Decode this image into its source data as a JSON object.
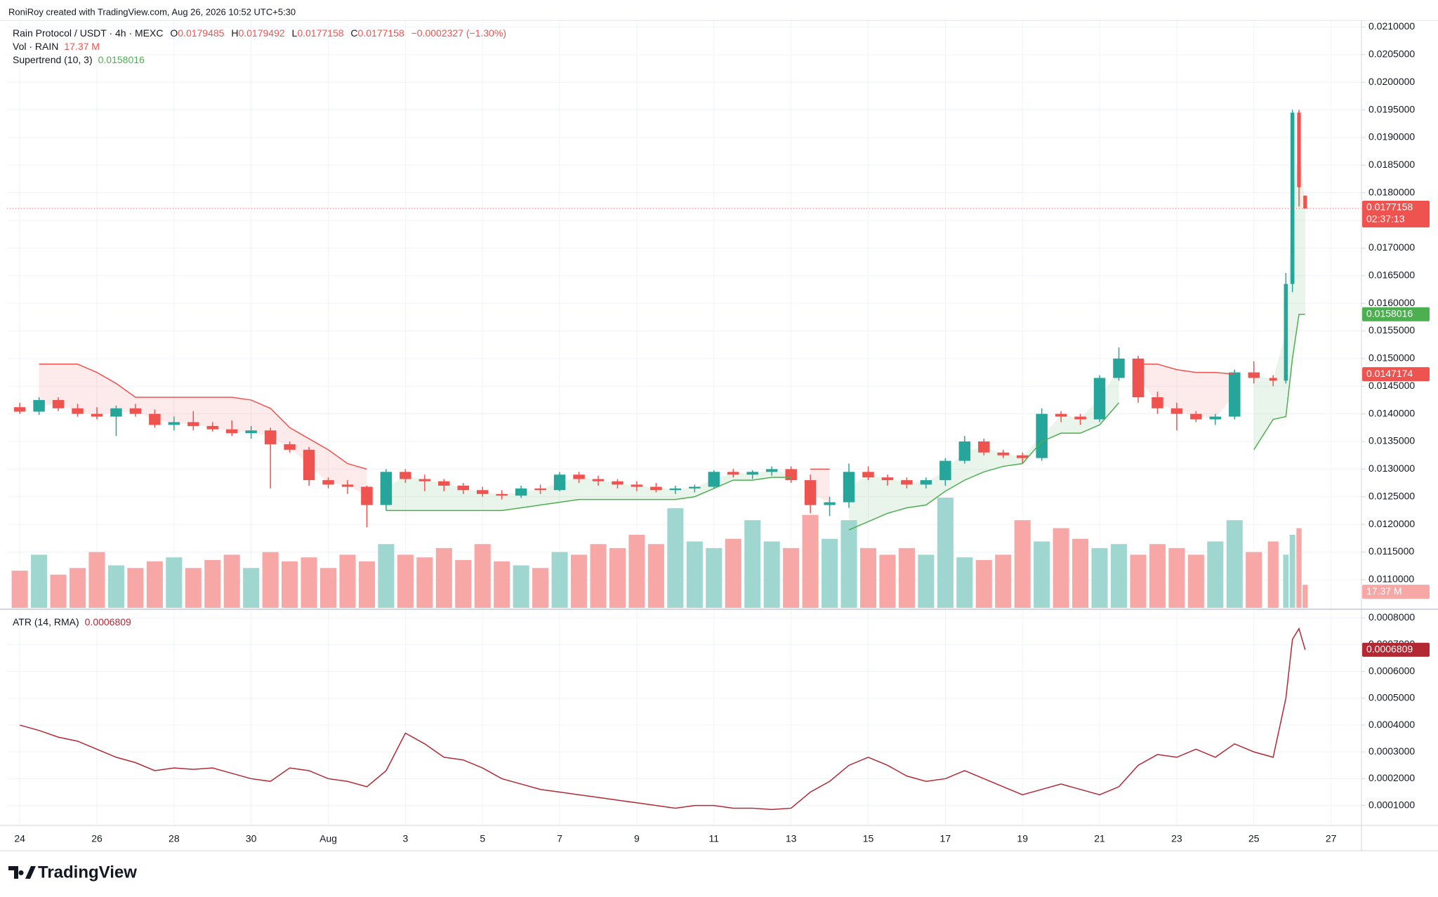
{
  "credit": "RoniRoy created with TradingView.com, Aug 26, 2026 10:52 UTC+5:30",
  "logo": "TradingView",
  "chart_data": [
    {
      "type": "candlestick",
      "title": "Rain Protocol / USDT · 4h · MEXC",
      "ohlc_letters": [
        "O",
        "H",
        "L",
        "C"
      ],
      "change": "−0.0002327 (−1.30%)",
      "up_color": "#26a69a",
      "down_color": "#ef5350",
      "countdown": "02:37:13",
      "x": [
        24,
        24.5,
        25,
        25.5,
        26,
        26.5,
        27,
        27.5,
        28,
        28.5,
        29,
        29.5,
        30,
        30.5,
        31,
        31.5,
        32,
        32.5,
        33,
        33.5,
        34,
        34.5,
        35,
        35.5,
        36,
        36.5,
        37,
        37.5,
        38,
        38.5,
        39,
        39.5,
        40,
        40.5,
        41,
        41.5,
        42,
        42.5,
        43,
        43.5,
        44,
        44.5,
        45,
        45.5,
        46,
        46.5,
        47,
        47.5,
        48,
        48.5,
        49,
        49.5,
        50,
        50.5,
        51,
        51.5,
        52,
        52.5,
        53,
        53.5,
        54,
        54.5,
        55,
        55.5,
        56,
        56.5,
        56.83,
        57,
        57.17,
        57.33
      ],
      "open": [
        0.01412,
        0.01404,
        0.01425,
        0.0141,
        0.014,
        0.01395,
        0.0141,
        0.014,
        0.0138,
        0.01385,
        0.01378,
        0.01372,
        0.01365,
        0.0137,
        0.01345,
        0.01335,
        0.0128,
        0.01272,
        0.01268,
        0.01235,
        0.01295,
        0.01282,
        0.01278,
        0.0127,
        0.01262,
        0.01255,
        0.01252,
        0.01265,
        0.01262,
        0.0129,
        0.01282,
        0.01278,
        0.01272,
        0.01268,
        0.01262,
        0.01265,
        0.01268,
        0.01295,
        0.0129,
        0.01295,
        0.013,
        0.0128,
        0.01235,
        0.0124,
        0.01295,
        0.01285,
        0.0128,
        0.01272,
        0.0128,
        0.01315,
        0.0135,
        0.0133,
        0.01325,
        0.0132,
        0.014,
        0.01395,
        0.0139,
        0.01465,
        0.015,
        0.0143,
        0.0141,
        0.014,
        0.0139,
        0.01395,
        0.01475,
        0.01465,
        0.0146,
        0.01635,
        0.01945,
        0.0179485
      ],
      "high": [
        0.0142,
        0.0143,
        0.0143,
        0.01418,
        0.01412,
        0.01415,
        0.01418,
        0.01408,
        0.01395,
        0.01405,
        0.01385,
        0.01388,
        0.01378,
        0.01375,
        0.0135,
        0.0134,
        0.01285,
        0.0128,
        0.0127,
        0.013,
        0.013,
        0.0129,
        0.01282,
        0.01275,
        0.01268,
        0.01262,
        0.0127,
        0.01272,
        0.01295,
        0.01295,
        0.01288,
        0.01282,
        0.01278,
        0.01275,
        0.0127,
        0.01272,
        0.01298,
        0.013,
        0.01298,
        0.01305,
        0.01305,
        0.0129,
        0.0125,
        0.0131,
        0.01305,
        0.0129,
        0.01285,
        0.01285,
        0.0132,
        0.0136,
        0.01355,
        0.01335,
        0.0133,
        0.0141,
        0.01405,
        0.014,
        0.0147,
        0.0152,
        0.01505,
        0.0144,
        0.0142,
        0.01405,
        0.014,
        0.0148,
        0.01495,
        0.0147,
        0.01655,
        0.0195,
        0.0195,
        0.0179492
      ],
      "low": [
        0.014,
        0.01398,
        0.01405,
        0.01395,
        0.0139,
        0.0136,
        0.01395,
        0.01375,
        0.0137,
        0.0137,
        0.01368,
        0.0136,
        0.01355,
        0.01265,
        0.0133,
        0.0127,
        0.01265,
        0.01255,
        0.01195,
        0.01225,
        0.01275,
        0.0126,
        0.0126,
        0.01255,
        0.0125,
        0.01245,
        0.01248,
        0.01255,
        0.0126,
        0.01275,
        0.0127,
        0.01265,
        0.0126,
        0.01258,
        0.01255,
        0.01258,
        0.01265,
        0.01285,
        0.01282,
        0.01288,
        0.01275,
        0.0122,
        0.01215,
        0.0123,
        0.0128,
        0.0127,
        0.01265,
        0.01265,
        0.0127,
        0.0131,
        0.01325,
        0.0132,
        0.0131,
        0.01315,
        0.01385,
        0.0138,
        0.01385,
        0.0146,
        0.0142,
        0.014,
        0.0137,
        0.01385,
        0.0138,
        0.0139,
        0.01455,
        0.0145,
        0.01455,
        0.0162,
        0.01775,
        0.0177158
      ],
      "close": [
        0.01404,
        0.01425,
        0.0141,
        0.014,
        0.01395,
        0.0141,
        0.014,
        0.0138,
        0.01385,
        0.01378,
        0.01372,
        0.01365,
        0.0137,
        0.01345,
        0.01335,
        0.0128,
        0.01272,
        0.01268,
        0.01235,
        0.01295,
        0.01282,
        0.01278,
        0.0127,
        0.01262,
        0.01255,
        0.01252,
        0.01265,
        0.01262,
        0.0129,
        0.01282,
        0.01278,
        0.01272,
        0.01268,
        0.01262,
        0.01265,
        0.01268,
        0.01295,
        0.0129,
        0.01295,
        0.013,
        0.0128,
        0.01235,
        0.0124,
        0.01295,
        0.01285,
        0.0128,
        0.01272,
        0.0128,
        0.01315,
        0.0135,
        0.0133,
        0.01325,
        0.0132,
        0.014,
        0.01395,
        0.0139,
        0.01465,
        0.015,
        0.0143,
        0.0141,
        0.014,
        0.0139,
        0.01395,
        0.01475,
        0.01465,
        0.0146,
        0.01635,
        0.01945,
        0.0181,
        0.0177158
      ],
      "xlim": [
        23.67,
        58.79
      ],
      "xticks": [
        24,
        26,
        28,
        30,
        {
          "value": 32,
          "label": "Aug"
        },
        {
          "value": 34,
          "label": "3"
        },
        {
          "value": 36,
          "label": "5"
        },
        {
          "value": 38,
          "label": "7"
        },
        {
          "value": 40,
          "label": "9"
        },
        {
          "value": 42,
          "label": "11"
        },
        {
          "value": 44,
          "label": "13"
        },
        {
          "value": 46,
          "label": "15"
        },
        {
          "value": 48,
          "label": "17"
        },
        {
          "value": 50,
          "label": "19"
        },
        {
          "value": 52,
          "label": "21"
        },
        {
          "value": 54,
          "label": "23"
        },
        {
          "value": 56,
          "label": "25"
        },
        {
          "value": 58,
          "label": "27"
        }
      ],
      "ylim": [
        0.01049,
        0.02112
      ],
      "yticks": [
        {
          "value": 0.011,
          "label": "0.0110000"
        },
        {
          "value": 0.0115,
          "label": "0.0115000"
        },
        {
          "value": 0.012,
          "label": "0.0120000"
        },
        {
          "value": 0.0125,
          "label": "0.0125000"
        },
        {
          "value": 0.013,
          "label": "0.0130000"
        },
        {
          "value": 0.0135,
          "label": "0.0135000"
        },
        {
          "value": 0.014,
          "label": "0.0140000"
        },
        {
          "value": 0.0145,
          "label": "0.0145000"
        },
        {
          "value": 0.015,
          "label": "0.0150000"
        },
        {
          "value": 0.0155,
          "label": "0.0155000"
        },
        {
          "value": 0.016,
          "label": "0.0160000"
        },
        {
          "value": 0.0165,
          "label": "0.0165000"
        },
        {
          "value": 0.017,
          "label": "0.0170000"
        },
        {
          "value": 0.0175,
          "label": "0.0175000"
        },
        {
          "value": 0.018,
          "label": "0.0180000"
        },
        {
          "value": 0.0185,
          "label": "0.0185000"
        },
        {
          "value": 0.019,
          "label": "0.0190000"
        },
        {
          "value": 0.0195,
          "label": "0.0195000"
        },
        {
          "value": 0.02,
          "label": "0.0200000"
        },
        {
          "value": 0.0205,
          "label": "0.0205000"
        },
        {
          "value": 0.021,
          "label": "0.0210000"
        }
      ],
      "grid": true,
      "volume": {
        "name": "Vol · RAIN",
        "last_label": "17.37 M",
        "up_color": "#9fd6d0",
        "down_color": "#f7a7a5",
        "values": [
          28,
          40,
          25,
          30,
          42,
          32,
          30,
          35,
          38,
          30,
          36,
          40,
          30,
          42,
          35,
          38,
          30,
          40,
          35,
          48,
          40,
          38,
          45,
          36,
          48,
          35,
          32,
          30,
          42,
          40,
          48,
          45,
          55,
          48,
          75,
          50,
          45,
          52,
          66,
          50,
          45,
          70,
          52,
          66,
          45,
          40,
          45,
          40,
          83,
          38,
          36,
          40,
          66,
          50,
          60,
          52,
          45,
          48,
          40,
          48,
          45,
          40,
          50,
          66,
          42,
          50,
          40,
          55,
          60,
          17.37
        ]
      },
      "supertrend": {
        "name": "Supertrend (10, 3)",
        "series": [
          {
            "color": "#4caf50",
            "values": [
              null,
              null,
              null,
              null,
              null,
              null,
              null,
              null,
              null,
              null,
              null,
              null,
              null,
              null,
              null,
              null,
              null,
              null,
              null,
              0.01225,
              0.01225,
              0.01225,
              0.01225,
              0.01225,
              0.01225,
              0.01225,
              0.0123,
              0.01235,
              0.0124,
              0.01245,
              0.01245,
              0.01245,
              0.01245,
              0.01245,
              0.01245,
              0.0125,
              0.01265,
              0.0128,
              0.0128,
              0.01285,
              0.01285,
              null,
              null,
              0.0119,
              0.01205,
              0.0122,
              0.0123,
              0.01235,
              0.0126,
              0.0128,
              0.01295,
              0.01305,
              0.0131,
              0.0135,
              0.01365,
              0.01365,
              0.0138,
              0.0142,
              null,
              null,
              null,
              null,
              null,
              null,
              0.01335,
              0.0139,
              0.01395,
              0.015,
              0.0158,
              0.0158016
            ]
          },
          {
            "color": "#ef5350",
            "values": [
              null,
              0.0149,
              0.0149,
              0.0149,
              0.01475,
              0.01455,
              0.0143,
              0.0143,
              0.0143,
              0.0143,
              0.0143,
              0.0143,
              0.01425,
              0.0141,
              0.01375,
              0.01355,
              0.01335,
              0.0131,
              0.013,
              null,
              null,
              null,
              null,
              null,
              null,
              null,
              null,
              null,
              null,
              null,
              null,
              null,
              null,
              null,
              null,
              null,
              null,
              null,
              null,
              null,
              null,
              0.013,
              0.013,
              null,
              null,
              null,
              null,
              null,
              null,
              null,
              null,
              null,
              null,
              null,
              null,
              null,
              null,
              null,
              0.0149,
              0.0149,
              0.0148,
              0.01475,
              0.01475,
              0.0147174,
              null,
              null,
              null,
              null,
              null,
              null
            ]
          }
        ]
      }
    },
    {
      "type": "line",
      "title": "ATR (14, RMA)",
      "color": "#b22833",
      "values": [
        0.0004,
        0.00038,
        0.000355,
        0.00034,
        0.00031,
        0.00028,
        0.00026,
        0.00023,
        0.00024,
        0.000235,
        0.00024,
        0.00022,
        0.0002,
        0.00019,
        0.00024,
        0.00023,
        0.0002,
        0.00019,
        0.00017,
        0.00023,
        0.00037,
        0.00033,
        0.00028,
        0.00027,
        0.00024,
        0.0002,
        0.00018,
        0.00016,
        0.00015,
        0.00014,
        0.00013,
        0.00012,
        0.00011,
        0.0001,
        9e-05,
        0.0001,
        0.0001,
        9e-05,
        9e-05,
        8.5e-05,
        9e-05,
        0.00015,
        0.00019,
        0.00025,
        0.00028,
        0.00025,
        0.00021,
        0.00019,
        0.0002,
        0.00023,
        0.0002,
        0.00017,
        0.00014,
        0.00016,
        0.00018,
        0.00016,
        0.00014,
        0.00017,
        0.00025,
        0.00029,
        0.00028,
        0.00031,
        0.00028,
        0.00033,
        0.0003,
        0.00028,
        0.0005,
        0.00072,
        0.00076,
        0.0006809
      ],
      "ylim": [
        2.83e-05,
        0.000827
      ],
      "yticks": [
        {
          "value": 0.0001,
          "label": "0.0001000"
        },
        {
          "value": 0.0002,
          "label": "0.0002000"
        },
        {
          "value": 0.0003,
          "label": "0.0003000"
        },
        {
          "value": 0.0004,
          "label": "0.0004000"
        },
        {
          "value": 0.0005,
          "label": "0.0005000"
        },
        {
          "value": 0.0006,
          "label": "0.0006000"
        },
        {
          "value": 0.0007,
          "label": "0.0007000"
        },
        {
          "value": 0.0008,
          "label": "0.0008000"
        }
      ],
      "grid": true
    }
  ]
}
